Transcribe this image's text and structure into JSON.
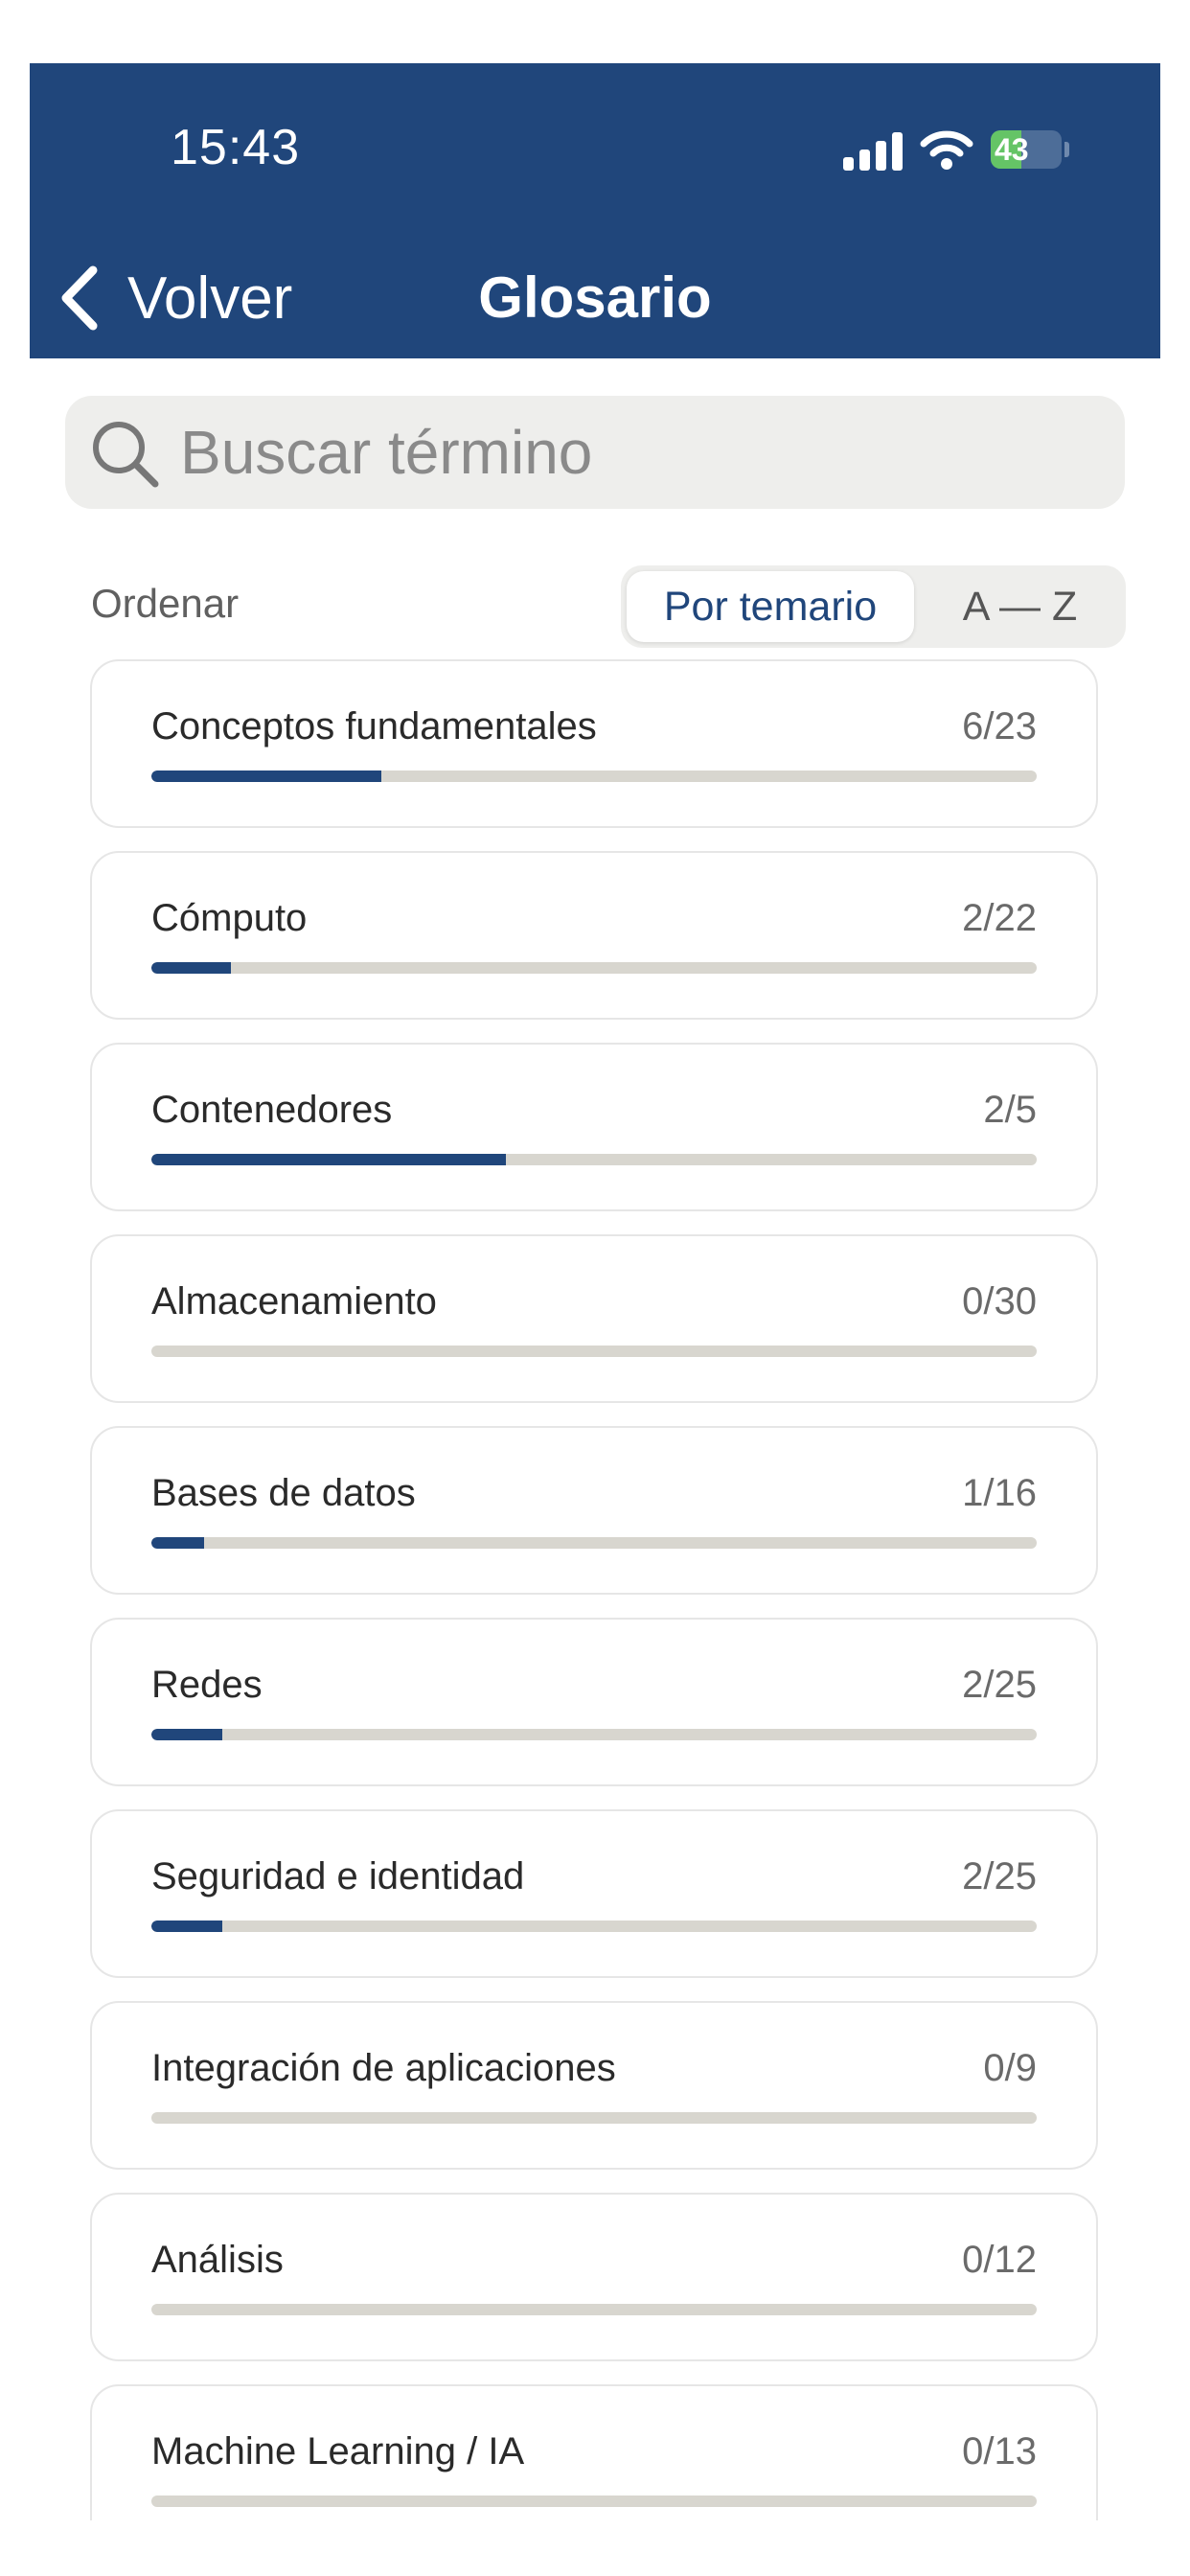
{
  "status_bar": {
    "time": "15:43",
    "battery": "43"
  },
  "header": {
    "back_label": "Volver",
    "title": "Glosario"
  },
  "search": {
    "placeholder": "Buscar término",
    "value": ""
  },
  "sort": {
    "label": "Ordenar",
    "options": [
      "Por temario",
      "A — Z"
    ],
    "selected": "Por temario"
  },
  "colors": {
    "primary": "#20467b",
    "track": "#d8d6cf",
    "battery_fill": "#65c466"
  },
  "topics": [
    {
      "name": "Conceptos fundamentales",
      "count": "6/23",
      "progress": 0.26
    },
    {
      "name": "Cómputo",
      "count": "2/22",
      "progress": 0.09
    },
    {
      "name": "Contenedores",
      "count": "2/5",
      "progress": 0.4
    },
    {
      "name": "Almacenamiento",
      "count": "0/30",
      "progress": 0
    },
    {
      "name": "Bases de datos",
      "count": "1/16",
      "progress": 0.06
    },
    {
      "name": "Redes",
      "count": "2/25",
      "progress": 0.08
    },
    {
      "name": "Seguridad e identidad",
      "count": "2/25",
      "progress": 0.08
    },
    {
      "name": "Integración de aplicaciones",
      "count": "0/9",
      "progress": 0
    },
    {
      "name": "Análisis",
      "count": "0/12",
      "progress": 0
    },
    {
      "name": "Machine Learning / IA",
      "count": "0/13",
      "progress": 0
    }
  ]
}
